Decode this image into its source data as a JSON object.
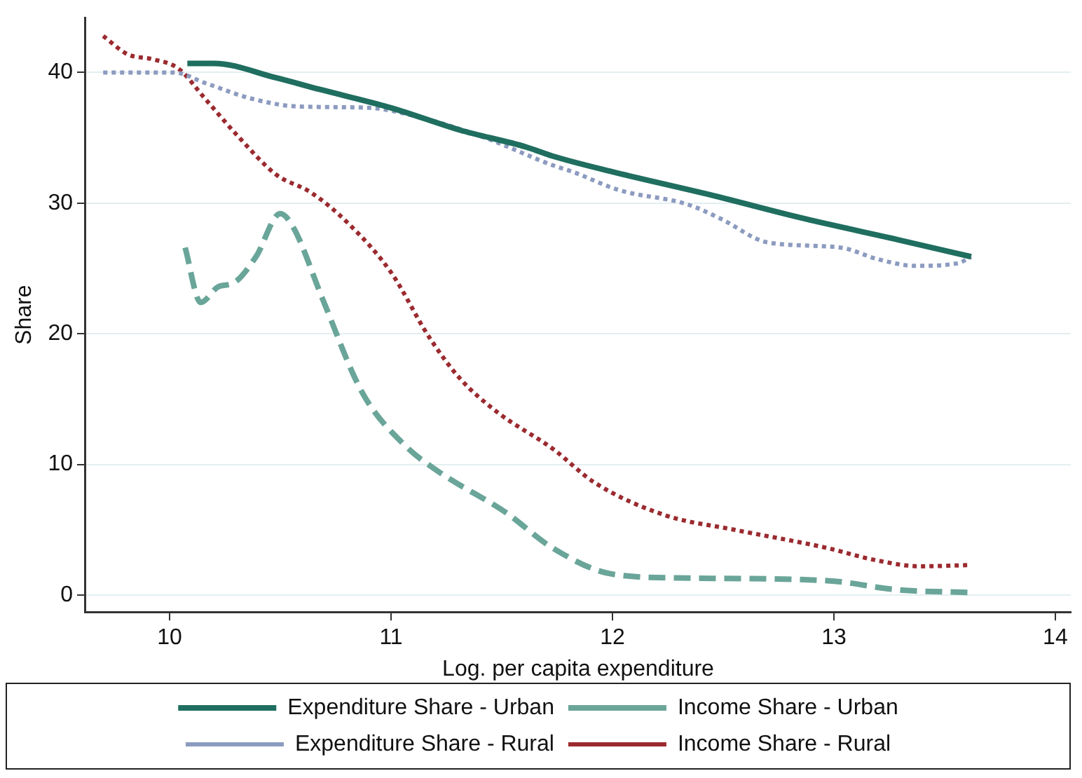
{
  "chart_data": {
    "type": "line",
    "xlabel": "Log. per capita expenditure",
    "ylabel": "Share",
    "xlim": [
      9.62,
      14.07
    ],
    "xticks": [
      10,
      11,
      12,
      13,
      14
    ],
    "ylim": [
      -1.3,
      44.2
    ],
    "yticks": [
      0,
      10,
      20,
      30,
      40
    ],
    "grid": "y",
    "legend": "bottom",
    "marker": "none",
    "series": [
      {
        "name": "Expenditure Share - Urban",
        "color": "#1f6e5f",
        "line_style": "solid",
        "x": [
          10.08,
          10.2,
          10.48,
          10.68,
          11.0,
          11.31,
          11.61,
          11.73,
          12.0,
          12.45,
          12.87,
          13.29,
          13.62
        ],
        "values": [
          40.7,
          40.7,
          39.6,
          38.7,
          37.3,
          35.6,
          34.3,
          33.6,
          32.4,
          30.6,
          28.8,
          27.2,
          25.9
        ]
      },
      {
        "name": "Income Share - Urban",
        "color": "#6aa599",
        "line_style": "dashed",
        "x": [
          10.07,
          10.14,
          10.22,
          10.29,
          10.39,
          10.5,
          10.56,
          10.69,
          10.87,
          11.06,
          11.21,
          11.52,
          11.73,
          12.0,
          12.34,
          12.97,
          13.29,
          13.61
        ],
        "values": [
          26.6,
          22.4,
          23.6,
          23.9,
          25.9,
          29.2,
          28.1,
          22.7,
          15.5,
          11.5,
          9.5,
          6.3,
          3.6,
          1.6,
          1.3,
          1.1,
          0.4,
          0.2
        ]
      },
      {
        "name": "Expenditure Share - Rural",
        "color": "#8c9bbf",
        "line_style": "dotted",
        "x": [
          9.7,
          10.02,
          10.16,
          10.37,
          10.58,
          10.9,
          11.1,
          11.41,
          11.73,
          11.82,
          12.03,
          12.34,
          12.49,
          12.7,
          13.03,
          13.2,
          13.37,
          13.56,
          13.62
        ],
        "values": [
          40.0,
          40.0,
          39.2,
          38.0,
          37.4,
          37.3,
          36.7,
          35.1,
          32.9,
          32.4,
          31.0,
          29.9,
          28.8,
          27.0,
          26.6,
          25.7,
          25.2,
          25.4,
          25.9
        ]
      },
      {
        "name": "Income Share - Rural",
        "color": "#9b2a2f",
        "line_style": "dotted",
        "x": [
          9.7,
          9.81,
          9.93,
          10.04,
          10.16,
          10.31,
          10.48,
          10.64,
          10.81,
          11.0,
          11.17,
          11.31,
          11.48,
          11.73,
          11.92,
          12.24,
          12.55,
          12.97,
          13.18,
          13.39,
          13.62
        ],
        "values": [
          42.8,
          41.4,
          41.0,
          40.3,
          38.0,
          35.1,
          32.2,
          30.8,
          28.4,
          24.7,
          19.8,
          16.6,
          14.0,
          11.2,
          8.6,
          6.1,
          5.0,
          3.6,
          2.7,
          2.2,
          2.3
        ]
      }
    ]
  }
}
